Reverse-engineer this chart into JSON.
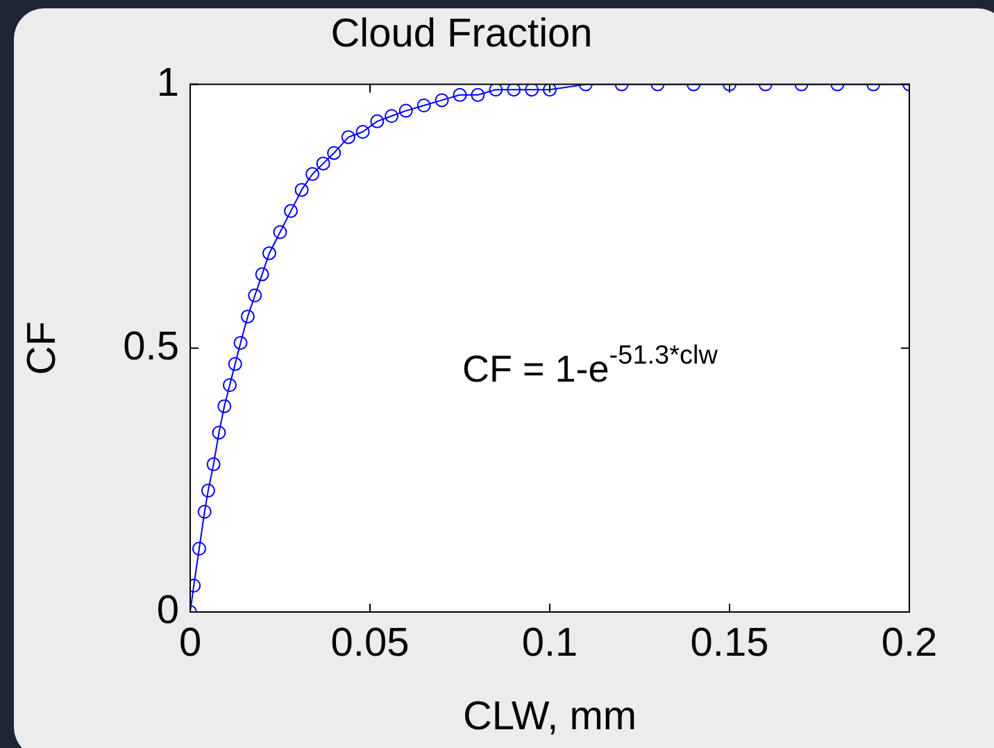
{
  "chart_data": {
    "type": "line",
    "title": "Cloud Fraction",
    "xlabel": "CLW, mm",
    "ylabel": "CF",
    "annotations": [
      "CF = 1-e$^{-51.3*clw}$"
    ],
    "series": [
      {
        "color": "#0000ff",
        "x": [
          0,
          0.001,
          0.0025,
          0.004,
          0.005,
          0.0065,
          0.008,
          0.0095,
          0.011,
          0.0125,
          0.014,
          0.016,
          0.018,
          0.02,
          0.022,
          0.025,
          0.028,
          0.031,
          0.034,
          0.037,
          0.04,
          0.044,
          0.048,
          0.052,
          0.056,
          0.06,
          0.065,
          0.07,
          0.075,
          0.08,
          0.085,
          0.09,
          0.095,
          0.1,
          0.11,
          0.12,
          0.13,
          0.14,
          0.15,
          0.16,
          0.17,
          0.18,
          0.19,
          0.2
        ],
        "values": [
          0,
          0.05,
          0.12,
          0.19,
          0.23,
          0.28,
          0.34,
          0.39,
          0.43,
          0.47,
          0.51,
          0.56,
          0.6,
          0.64,
          0.68,
          0.72,
          0.76,
          0.8,
          0.83,
          0.85,
          0.87,
          0.9,
          0.91,
          0.93,
          0.94,
          0.95,
          0.96,
          0.97,
          0.98,
          0.98,
          0.99,
          0.99,
          0.99,
          0.99,
          1,
          1,
          1,
          1,
          1,
          1,
          1,
          1,
          1,
          1
        ]
      }
    ],
    "xlim": [
      0,
      0.2
    ],
    "xticks": [
      0,
      0.05,
      0.1,
      0.15,
      0.2
    ],
    "ylim": [
      0,
      1
    ],
    "yticks": [
      0,
      0.5,
      1
    ],
    "grid": false,
    "legend": false,
    "marker": "circle",
    "line_style": "solid"
  }
}
